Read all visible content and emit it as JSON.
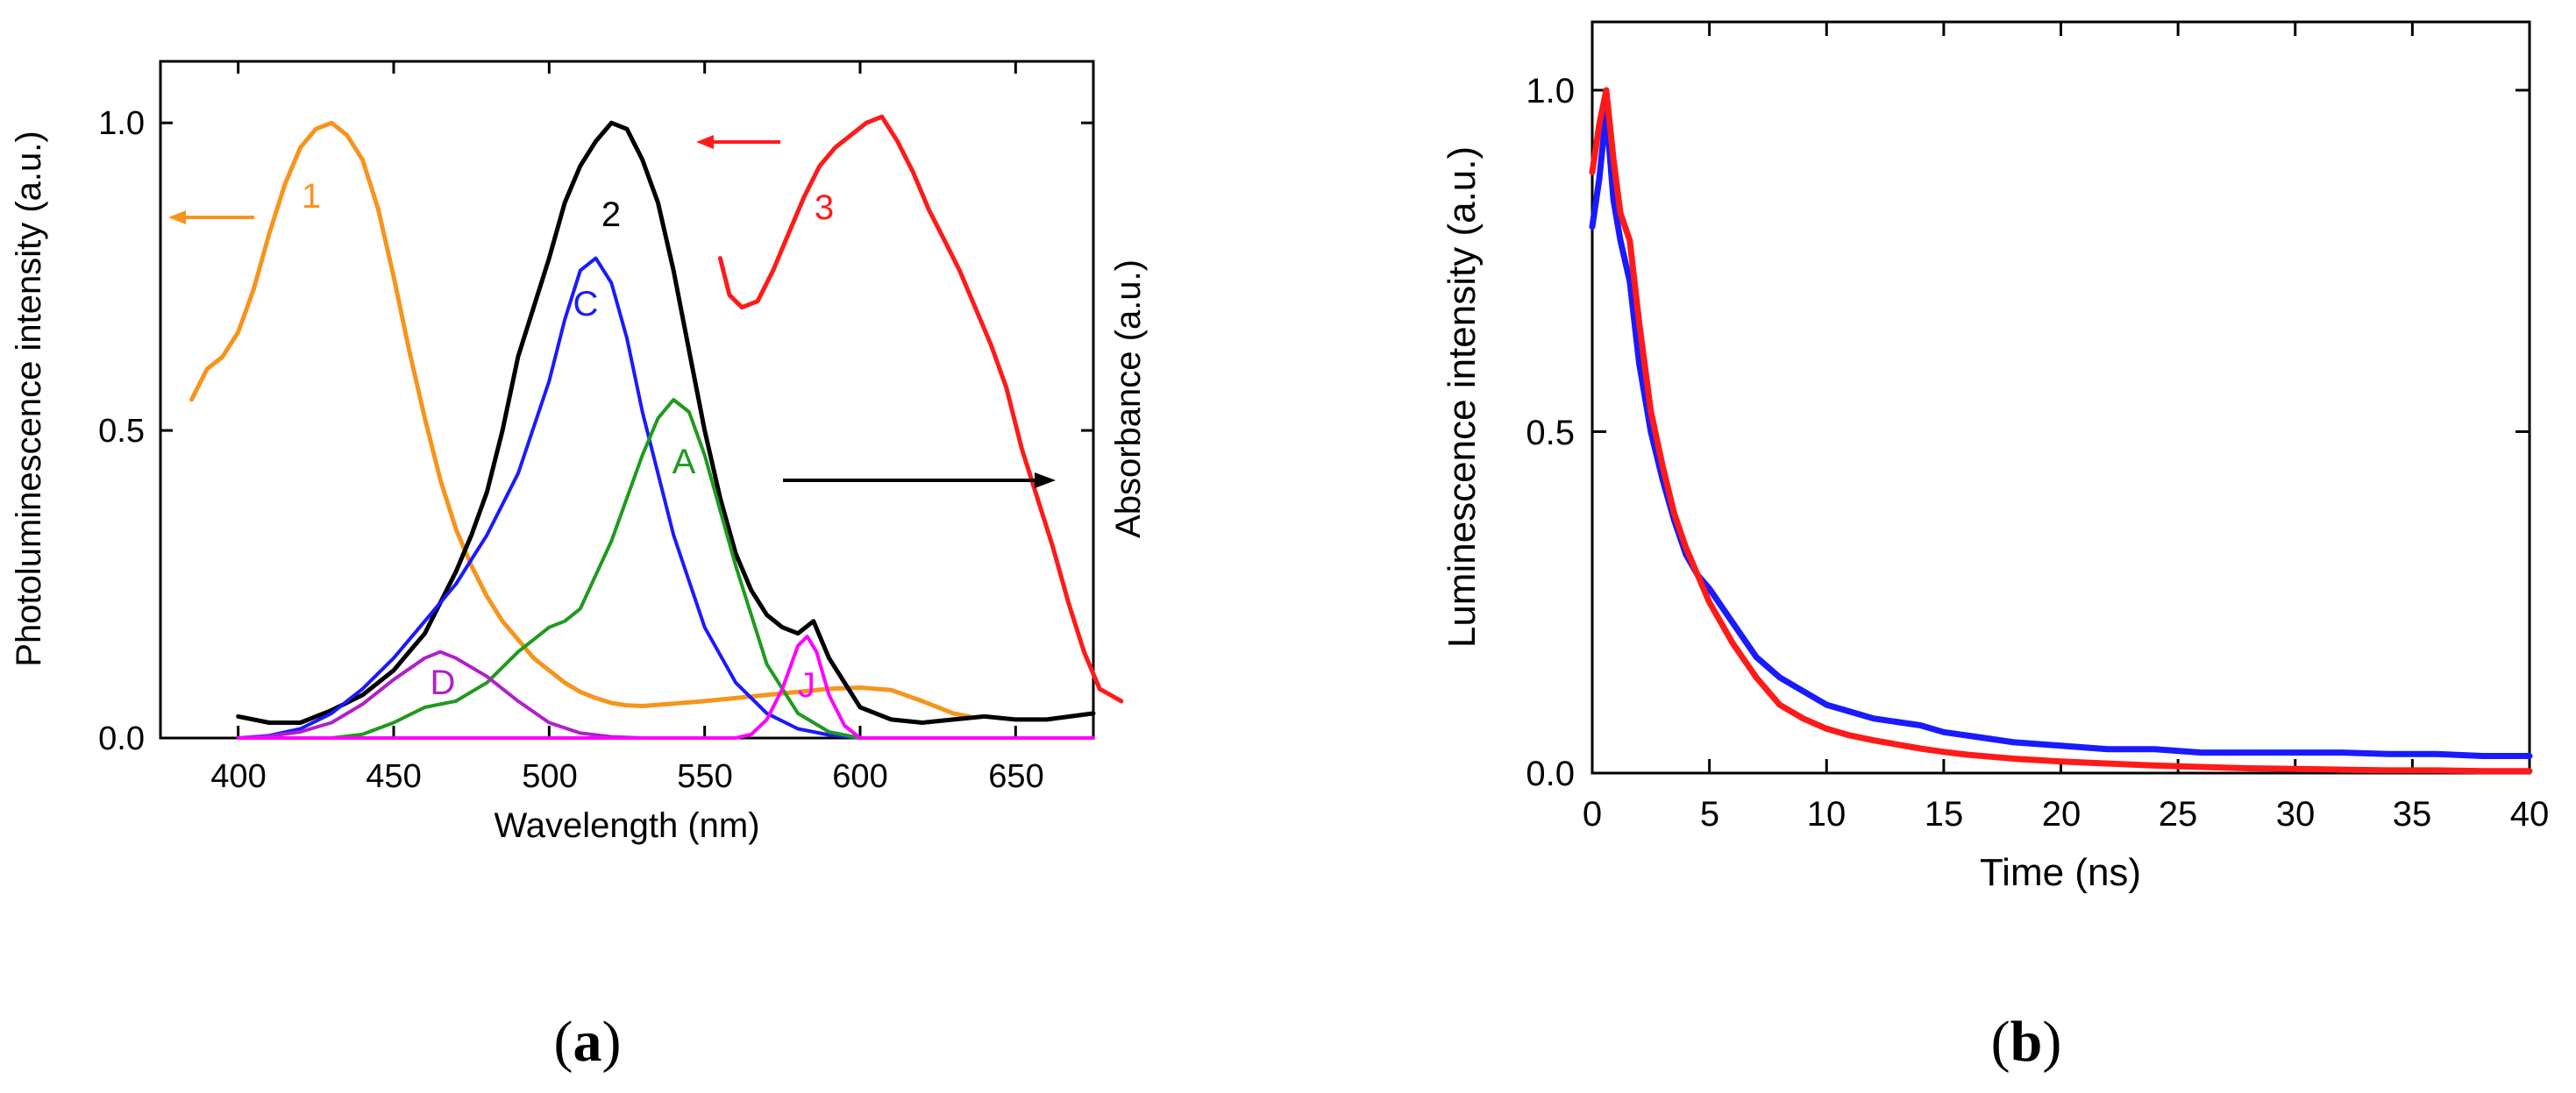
{
  "chart_data": [
    {
      "id": "a",
      "type": "line",
      "panel_label_open": "(",
      "panel_label": "a",
      "panel_label_close": ")",
      "xlabel": "Wavelength (nm)",
      "ylabel": "Photoluminescence intensity (a.u.)",
      "y2label": "Absorbance (a.u.)",
      "xlim": [
        375,
        675
      ],
      "ylim": [
        0,
        1.1
      ],
      "xticks": [
        400,
        450,
        500,
        550,
        600,
        650
      ],
      "yticks": [
        0.0,
        0.5,
        1.0
      ],
      "tick_labels_x": [
        "400",
        "450",
        "500",
        "550",
        "600",
        "650"
      ],
      "tick_labels_y": [
        "0.0",
        "0.5",
        "1.0"
      ],
      "series": [
        {
          "name": "1",
          "color": "#f7941d",
          "width": 5,
          "x": [
            385,
            390,
            395,
            400,
            405,
            410,
            415,
            420,
            425,
            430,
            435,
            440,
            445,
            450,
            455,
            460,
            465,
            470,
            475,
            480,
            485,
            490,
            495,
            500,
            505,
            510,
            515,
            520,
            525,
            530,
            540,
            550,
            560,
            570,
            580,
            590,
            600,
            610,
            620,
            630,
            635
          ],
          "y": [
            0.55,
            0.6,
            0.62,
            0.66,
            0.73,
            0.82,
            0.9,
            0.96,
            0.99,
            1.0,
            0.98,
            0.94,
            0.86,
            0.75,
            0.63,
            0.52,
            0.42,
            0.34,
            0.28,
            0.23,
            0.19,
            0.16,
            0.13,
            0.11,
            0.09,
            0.075,
            0.065,
            0.057,
            0.053,
            0.052,
            0.056,
            0.06,
            0.065,
            0.07,
            0.075,
            0.08,
            0.082,
            0.078,
            0.06,
            0.04,
            0.035
          ]
        },
        {
          "name": "2",
          "color": "#000000",
          "width": 5,
          "x": [
            400,
            410,
            420,
            430,
            440,
            450,
            455,
            460,
            465,
            470,
            475,
            480,
            485,
            490,
            495,
            500,
            505,
            510,
            515,
            520,
            525,
            530,
            535,
            540,
            545,
            550,
            555,
            560,
            565,
            570,
            575,
            580,
            585,
            590,
            600,
            610,
            620,
            630,
            640,
            650,
            660,
            675
          ],
          "y": [
            0.035,
            0.025,
            0.025,
            0.045,
            0.07,
            0.11,
            0.14,
            0.17,
            0.22,
            0.27,
            0.33,
            0.4,
            0.5,
            0.62,
            0.7,
            0.78,
            0.87,
            0.93,
            0.97,
            1.0,
            0.99,
            0.94,
            0.87,
            0.76,
            0.63,
            0.5,
            0.39,
            0.3,
            0.24,
            0.2,
            0.18,
            0.17,
            0.19,
            0.13,
            0.05,
            0.03,
            0.025,
            0.03,
            0.035,
            0.03,
            0.03,
            0.04
          ]
        },
        {
          "name": "C",
          "color": "#1a1aff",
          "width": 4,
          "x": [
            400,
            410,
            420,
            430,
            440,
            450,
            460,
            470,
            480,
            490,
            500,
            505,
            510,
            515,
            520,
            525,
            530,
            540,
            550,
            560,
            570,
            580,
            590,
            600
          ],
          "y": [
            0.0,
            0.004,
            0.015,
            0.04,
            0.08,
            0.13,
            0.19,
            0.25,
            0.33,
            0.43,
            0.58,
            0.68,
            0.76,
            0.78,
            0.74,
            0.65,
            0.53,
            0.33,
            0.18,
            0.09,
            0.04,
            0.015,
            0.005,
            0.0
          ]
        },
        {
          "name": "A",
          "color": "#1f9a1f",
          "width": 4,
          "x": [
            430,
            440,
            450,
            460,
            470,
            480,
            490,
            500,
            505,
            510,
            520,
            530,
            535,
            540,
            545,
            550,
            560,
            570,
            580,
            590,
            600
          ],
          "y": [
            0.0,
            0.006,
            0.025,
            0.05,
            0.06,
            0.09,
            0.14,
            0.18,
            0.19,
            0.21,
            0.32,
            0.46,
            0.52,
            0.55,
            0.53,
            0.46,
            0.28,
            0.12,
            0.04,
            0.01,
            0.0
          ]
        },
        {
          "name": "D",
          "color": "#b020c8",
          "width": 4,
          "x": [
            400,
            410,
            420,
            430,
            440,
            450,
            460,
            465,
            470,
            480,
            490,
            500,
            510,
            520,
            530
          ],
          "y": [
            0.0,
            0.003,
            0.01,
            0.025,
            0.055,
            0.095,
            0.13,
            0.14,
            0.13,
            0.1,
            0.06,
            0.025,
            0.008,
            0.002,
            0.0
          ]
        },
        {
          "name": "J",
          "color": "#ff00ff",
          "width": 4,
          "x": [
            400,
            560,
            565,
            570,
            575,
            580,
            583,
            586,
            590,
            595,
            600,
            675
          ],
          "y": [
            0.0,
            0.0,
            0.006,
            0.03,
            0.08,
            0.15,
            0.165,
            0.14,
            0.07,
            0.02,
            0.0,
            0.0
          ]
        },
        {
          "name": "3",
          "color": "#ff1a1a",
          "width": 5,
          "x": [
            555,
            558,
            562,
            567,
            572,
            577,
            582,
            587,
            592,
            597,
            602,
            607,
            612,
            617,
            622,
            627,
            632,
            637,
            642,
            647,
            652,
            657,
            662,
            667,
            672,
            677,
            684
          ],
          "y": [
            0.78,
            0.72,
            0.7,
            0.71,
            0.76,
            0.82,
            0.88,
            0.93,
            0.96,
            0.98,
            1.0,
            1.01,
            0.97,
            0.92,
            0.86,
            0.81,
            0.76,
            0.7,
            0.64,
            0.57,
            0.47,
            0.39,
            0.31,
            0.22,
            0.14,
            0.08,
            0.06
          ]
        }
      ],
      "annotations": [
        "1",
        "2",
        "3",
        "C",
        "A",
        "D",
        "J"
      ]
    },
    {
      "id": "b",
      "type": "line",
      "panel_label_open": "(",
      "panel_label": "b",
      "panel_label_close": ")",
      "xlabel": "Time (ns)",
      "ylabel": "Luminescence intensity (a.u.)",
      "xlim": [
        0,
        40
      ],
      "ylim": [
        0,
        1.1
      ],
      "xticks": [
        0,
        5,
        10,
        15,
        20,
        25,
        30,
        35,
        40
      ],
      "yticks": [
        0.0,
        0.5,
        1.0
      ],
      "tick_labels_x": [
        "0",
        "5",
        "10",
        "15",
        "20",
        "25",
        "30",
        "35",
        "40"
      ],
      "tick_labels_y": [
        "0.0",
        "0.5",
        "1.0"
      ],
      "series": [
        {
          "name": "blue",
          "color": "#1a1aff",
          "width": 7,
          "x": [
            0,
            0.3,
            0.6,
            0.9,
            1.2,
            1.6,
            2.0,
            2.5,
            3.0,
            3.5,
            4.0,
            4.5,
            5.0,
            6.0,
            7.0,
            8.0,
            9.0,
            10,
            11,
            12,
            13,
            14,
            15,
            16,
            17,
            18,
            20,
            22,
            24,
            26,
            28,
            30,
            32,
            34,
            36,
            38,
            40
          ],
          "y": [
            0.8,
            0.87,
            0.97,
            0.84,
            0.78,
            0.72,
            0.6,
            0.5,
            0.43,
            0.37,
            0.32,
            0.29,
            0.27,
            0.22,
            0.17,
            0.14,
            0.12,
            0.1,
            0.09,
            0.08,
            0.075,
            0.07,
            0.06,
            0.055,
            0.05,
            0.045,
            0.04,
            0.035,
            0.035,
            0.03,
            0.03,
            0.03,
            0.03,
            0.028,
            0.028,
            0.025,
            0.025
          ]
        },
        {
          "name": "red",
          "color": "#ff1a1a",
          "width": 7,
          "x": [
            0,
            0.3,
            0.6,
            0.9,
            1.2,
            1.6,
            2.0,
            2.5,
            3.0,
            3.5,
            4.0,
            4.5,
            5.0,
            6.0,
            7.0,
            8.0,
            9.0,
            10,
            11,
            12,
            13,
            14,
            15,
            16,
            17,
            18,
            20,
            22,
            24,
            26,
            28,
            30,
            32,
            34,
            36,
            38,
            40
          ],
          "y": [
            0.88,
            0.95,
            1.0,
            0.9,
            0.82,
            0.78,
            0.66,
            0.53,
            0.45,
            0.38,
            0.33,
            0.29,
            0.25,
            0.19,
            0.14,
            0.1,
            0.08,
            0.065,
            0.055,
            0.048,
            0.042,
            0.036,
            0.031,
            0.027,
            0.024,
            0.021,
            0.017,
            0.014,
            0.011,
            0.009,
            0.007,
            0.006,
            0.005,
            0.004,
            0.004,
            0.003,
            0.003
          ]
        }
      ]
    }
  ]
}
